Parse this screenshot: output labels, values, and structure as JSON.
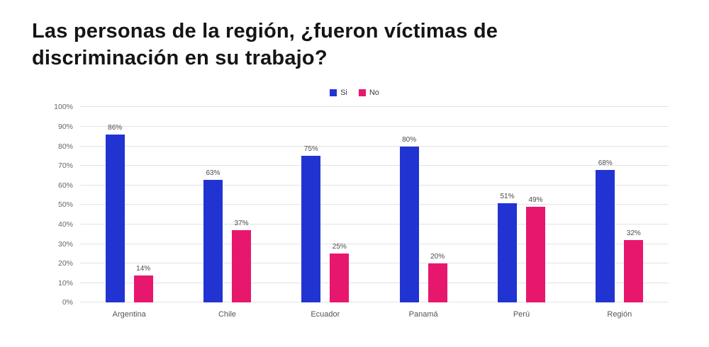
{
  "title": "Las personas de la región, ¿fueron víctimas de discriminación en su trabajo?",
  "colors": {
    "si": "#2134d2",
    "no": "#e8176e",
    "grid": "#e3e3e3"
  },
  "chart_data": {
    "type": "bar",
    "title": "Las personas de la región, ¿fueron víctimas de discriminación en su trabajo?",
    "categories": [
      "Argentina",
      "Chile",
      "Ecuador",
      "Panamá",
      "Perú",
      "Región"
    ],
    "series": [
      {
        "name": "Si",
        "color": "#2134d2",
        "values": [
          86,
          63,
          75,
          80,
          51,
          68
        ]
      },
      {
        "name": "No",
        "color": "#e8176e",
        "values": [
          14,
          37,
          25,
          20,
          49,
          32
        ]
      }
    ],
    "xlabel": "",
    "ylabel": "",
    "ylim": [
      0,
      100
    ],
    "ytick_step": 10,
    "ytick_suffix": "%",
    "grid": true,
    "legend_position": "top-center",
    "value_labels": true,
    "value_label_suffix": "%"
  }
}
